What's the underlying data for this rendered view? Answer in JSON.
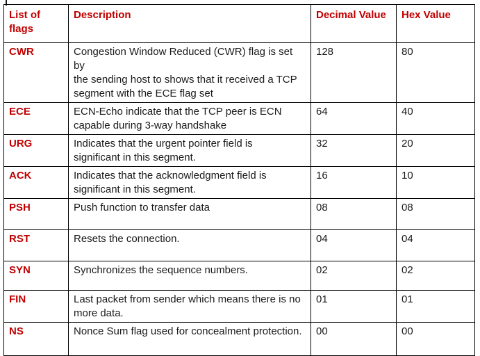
{
  "table": {
    "columns": [
      "List of flags",
      "Description",
      "Decimal Value",
      "Hex Value"
    ],
    "rows": [
      {
        "flag": "CWR",
        "description": "Congestion Window Reduced (CWR) flag is set by\nthe sending host to shows that it received a TCP\nsegment with the ECE flag set",
        "decimal": "128",
        "hex": "80"
      },
      {
        "flag": "ECE",
        "description": "ECN-Echo indicate that the TCP peer is ECN\ncapable during 3-way handshake",
        "decimal": "64",
        "hex": "40"
      },
      {
        "flag": "URG",
        "description": "Indicates that the urgent pointer field is\nsignificant in this segment.",
        "decimal": "32",
        "hex": "20"
      },
      {
        "flag": "ACK",
        "description": "Indicates that the acknowledgment field is\nsignificant in this segment.",
        "decimal": "16",
        "hex": "10"
      },
      {
        "flag": "PSH",
        "description": "Push function to transfer data",
        "decimal": "08",
        "hex": "08"
      },
      {
        "flag": "RST",
        "description": "Resets the connection.",
        "decimal": "04",
        "hex": "04"
      },
      {
        "flag": "SYN",
        "description": "Synchronizes the sequence numbers.",
        "decimal": "02",
        "hex": "02"
      },
      {
        "flag": "FIN",
        "description": "Last packet from sender which means there is no\nmore data.",
        "decimal": "01",
        "hex": "01"
      },
      {
        "flag": "NS",
        "description": "Nonce Sum flag used for concealment protection.",
        "decimal": "00",
        "hex": "00"
      }
    ]
  },
  "colors": {
    "accent_red": "#C00000",
    "body_text": "#1A1A1A",
    "border": "#000000",
    "background": "#FFFFFF"
  }
}
